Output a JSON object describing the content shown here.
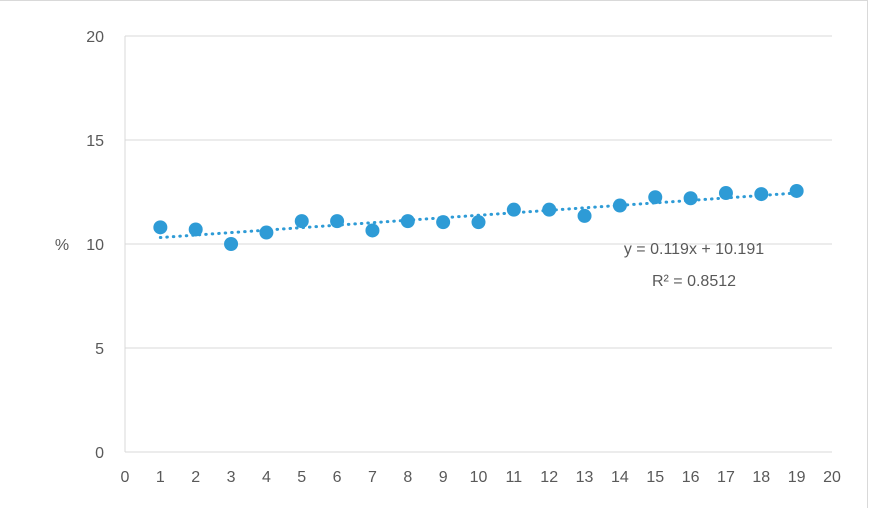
{
  "chart_data": {
    "type": "scatter",
    "ylabel": "%",
    "xlim": [
      0,
      20
    ],
    "ylim": [
      0,
      20
    ],
    "x_ticks": [
      0,
      1,
      2,
      3,
      4,
      5,
      6,
      7,
      8,
      9,
      10,
      11,
      12,
      13,
      14,
      15,
      16,
      17,
      18,
      19,
      20
    ],
    "y_ticks": [
      0,
      5,
      10,
      15,
      20
    ],
    "grid": true,
    "series": [
      {
        "x": [
          1,
          2,
          3,
          4,
          5,
          6,
          7,
          8,
          9,
          10,
          11,
          12,
          13,
          14,
          15,
          16,
          17,
          18,
          19
        ],
        "y": [
          10.8,
          10.7,
          10.0,
          10.55,
          11.1,
          11.1,
          10.65,
          11.1,
          11.05,
          11.05,
          11.65,
          11.65,
          11.35,
          11.85,
          12.25,
          12.2,
          12.45,
          12.4,
          12.55
        ]
      }
    ],
    "trendline": {
      "type": "linear",
      "slope": 0.119,
      "intercept": 10.191,
      "x_range": [
        1,
        19
      ],
      "equation_label": "y = 0.119x + 10.191",
      "r2_label": "R² = 0.8512"
    },
    "colors": {
      "marker": "#2E9BD6",
      "trendline": "#2E9BD6",
      "grid": "#D9D9D9",
      "text": "#595959"
    }
  }
}
